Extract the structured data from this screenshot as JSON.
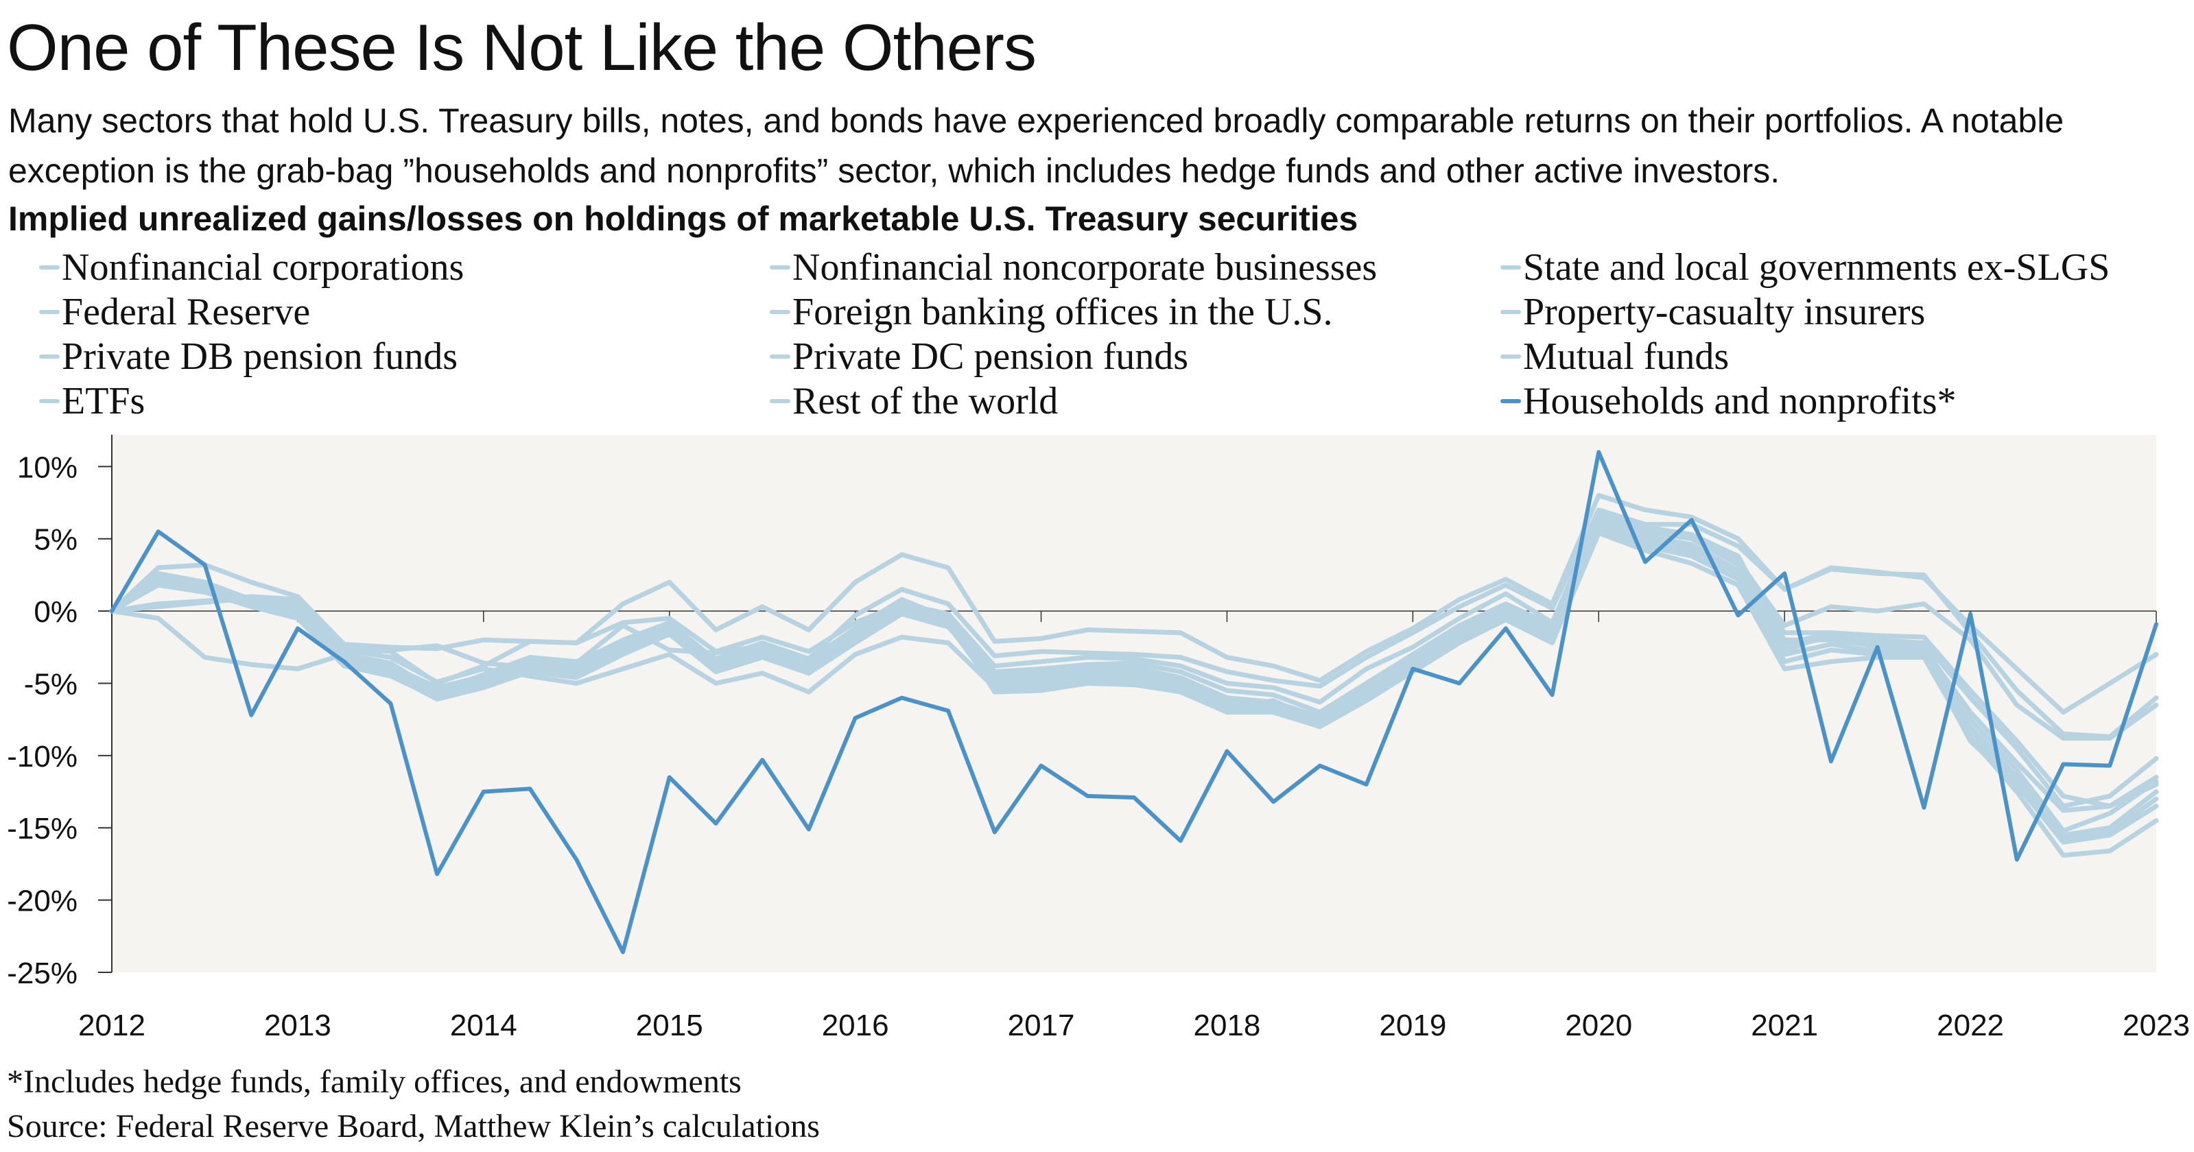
{
  "title": "One of These Is Not Like the Others",
  "subtitle": "Many sectors that hold U.S. Treasury bills, notes, and bonds have experienced broadly comparable returns on their portfolios. A notable exception is the grab-bag ”households and nonprofits” sector, which includes hedge funds and other active investors.",
  "footnote": "*Includes hedge funds, family offices, and endowments",
  "source": "Source: Federal Reserve Board, Matthew Klein’s calculations",
  "colors": {
    "others": "#b7d3e2",
    "highlight": "#4a92c8",
    "plot_background": "#f5f4f0",
    "zero_line": "#333333"
  },
  "chart_data": {
    "type": "line",
    "title": "Implied unrealized gains/losses on holdings of marketable U.S. Treasury securities",
    "xlabel": "",
    "ylabel": "",
    "xlim": [
      2012,
      2023
    ],
    "ylim": [
      -25,
      12.2
    ],
    "x_ticks": [
      "2012",
      "2013",
      "2014",
      "2015",
      "2016",
      "2017",
      "2018",
      "2019",
      "2020",
      "2021",
      "2022",
      "2023"
    ],
    "y_ticks": [
      10,
      5,
      0,
      -5,
      -10,
      -15,
      -20,
      -25
    ],
    "y_tick_labels": [
      "10%",
      "5%",
      "0%",
      "-5%",
      "-10%",
      "-15%",
      "-20%",
      "-25%"
    ],
    "grid": false,
    "legend_position": "top",
    "x": [
      2012,
      2012.25,
      2012.5,
      2012.75,
      2013,
      2013.25,
      2013.5,
      2013.75,
      2014,
      2014.25,
      2014.5,
      2014.75,
      2015,
      2015.25,
      2015.5,
      2015.75,
      2016,
      2016.25,
      2016.5,
      2016.75,
      2017,
      2017.25,
      2017.5,
      2017.75,
      2018,
      2018.25,
      2018.5,
      2018.75,
      2019,
      2019.25,
      2019.5,
      2019.75,
      2020,
      2020.25,
      2020.5,
      2020.75,
      2021,
      2021.25,
      2021.5,
      2021.75,
      2022,
      2022.25,
      2022.5,
      2022.75,
      2023
    ],
    "series": [
      {
        "name": "Nonfinancial corporations",
        "highlight": false,
        "values": [
          0,
          2.5,
          1.7,
          0.6,
          0,
          -3.2,
          -3.8,
          -5.3,
          -4.5,
          -3.3,
          -3.6,
          -2,
          -0.8,
          -3.4,
          -2.3,
          -3.4,
          -1.2,
          0.8,
          -0.5,
          -4.2,
          -4,
          -3.7,
          -3.6,
          -4.2,
          -5.5,
          -5.8,
          -7,
          -5,
          -3,
          -1,
          0.5,
          -1,
          6.8,
          5.7,
          5,
          3.2,
          -1.5,
          -1.5,
          -2,
          -2.2,
          -6,
          -9.5,
          -13.5,
          -12.8,
          -10.2
        ]
      },
      {
        "name": "Nonfinancial noncorporate businesses",
        "highlight": false,
        "values": [
          0,
          3,
          3.2,
          2,
          1,
          -2.3,
          -2.5,
          -2.6,
          -2,
          -2.1,
          -2.2,
          0.5,
          2,
          -1.3,
          0.3,
          -1.3,
          2,
          3.9,
          3,
          -2.1,
          -1.9,
          -1.3,
          -1.4,
          -1.5,
          -3.2,
          -3.8,
          -4.8,
          -2.8,
          -1.2,
          0.8,
          2.2,
          0.5,
          8,
          7,
          6.5,
          5,
          1.5,
          3,
          2.7,
          2.3,
          -1,
          -4,
          -7,
          -5,
          -3
        ]
      },
      {
        "name": "State and local governments ex-SLGS",
        "highlight": false,
        "values": [
          0,
          -0.5,
          -3.2,
          -3.7,
          -4,
          -3,
          -2.7,
          -2.4,
          -3.6,
          -3.9,
          -3.6,
          -1,
          -2.7,
          -2.9,
          -2.4,
          -3.3,
          -0.3,
          1.5,
          0.5,
          -3.1,
          -2.8,
          -2.9,
          -3,
          -3.2,
          -4.2,
          -4.8,
          -5.2,
          -3.2,
          -1.5,
          0.3,
          1.8,
          0.2,
          7,
          6,
          6,
          4.5,
          1.5,
          2.9,
          2.6,
          2.5,
          -1.5,
          -5.5,
          -8.5,
          -8.7,
          -6
        ]
      },
      {
        "name": "Federal Reserve",
        "highlight": false,
        "values": [
          0,
          0.5,
          0.7,
          1,
          0.8,
          -2.5,
          -2.8,
          -5,
          -3.8,
          -2.1,
          -2.2,
          -0.8,
          -0.5,
          -2.8,
          -1.8,
          -2.8,
          -0.8,
          0.5,
          -0.2,
          -3.8,
          -3.5,
          -3.2,
          -3.3,
          -3.8,
          -5,
          -5.3,
          -6.3,
          -4,
          -2.5,
          -0.5,
          1.2,
          -0.8,
          6.5,
          5.5,
          5,
          3.5,
          -1,
          0.3,
          0,
          0.5,
          -2,
          -6.5,
          -8.8,
          -8.8,
          -6.5
        ]
      },
      {
        "name": "Foreign banking offices in the U.S.",
        "highlight": false,
        "values": [
          0,
          2.2,
          1.6,
          0.5,
          -0.3,
          -3.5,
          -4.2,
          -5.8,
          -4.8,
          -3.6,
          -4,
          -2.4,
          -1,
          -3.8,
          -2.7,
          -3.7,
          -1.6,
          0.3,
          -0.8,
          -4.8,
          -4.5,
          -4,
          -4,
          -4.8,
          -6.2,
          -6.5,
          -7.5,
          -5.5,
          -3.5,
          -1.5,
          0,
          -1.5,
          6.2,
          5.2,
          4.6,
          2.8,
          -2,
          -2,
          -2.4,
          -2.6,
          -7,
          -10.5,
          -13.8,
          -13.5,
          -11.5
        ]
      },
      {
        "name": "Property-casualty insurers",
        "highlight": false,
        "values": [
          0,
          1.8,
          1.3,
          0.3,
          -0.5,
          -3.8,
          -4.5,
          -6,
          -5.2,
          -4,
          -4.3,
          -2.8,
          -1.3,
          -4,
          -3,
          -4,
          -2,
          0,
          -1,
          -5.2,
          -4.8,
          -4.5,
          -4.6,
          -5.3,
          -6.6,
          -6.8,
          -7.8,
          -5.8,
          -3.8,
          -1.8,
          -0.3,
          -1.8,
          5.8,
          4.8,
          4,
          2.4,
          -2.5,
          -1.8,
          -2.5,
          -2.7,
          -8,
          -11.5,
          -15.5,
          -15,
          -12.5
        ]
      },
      {
        "name": "Private DB pension funds",
        "highlight": false,
        "values": [
          0,
          2.4,
          1.8,
          0.7,
          0.2,
          -3.1,
          -4,
          -5.5,
          -4.6,
          -3.4,
          -3.7,
          -2.2,
          -0.9,
          -3.6,
          -2.5,
          -3.6,
          -1.4,
          0.6,
          -0.6,
          -5,
          -4.7,
          -4.2,
          -4.3,
          -5,
          -6.5,
          -6.7,
          -7.6,
          -5.6,
          -3.6,
          -1.6,
          -0.1,
          -1.6,
          6,
          5,
          4.3,
          2.6,
          -3,
          -2.3,
          -2.8,
          -2.9,
          -8.5,
          -11.8,
          -15.8,
          -15.3,
          -13
        ]
      },
      {
        "name": "Private DC pension funds",
        "highlight": false,
        "values": [
          0,
          2,
          1.5,
          0.4,
          -0.2,
          -3.3,
          -4.3,
          -5.7,
          -5,
          -3.8,
          -4.1,
          -2.6,
          -1.1,
          -3.9,
          -2.8,
          -3.9,
          -1.8,
          0.2,
          -0.9,
          -5.4,
          -5.2,
          -4.8,
          -4.8,
          -5.4,
          -6.8,
          -7,
          -8,
          -6,
          -4,
          -2,
          -0.5,
          -2,
          5.5,
          4.5,
          3.8,
          2.2,
          -3.5,
          -2.7,
          -3,
          -3,
          -9,
          -12,
          -16,
          -15.5,
          -13.5
        ]
      },
      {
        "name": "Mutual funds",
        "highlight": false,
        "values": [
          0,
          2.6,
          2,
          0.8,
          0.3,
          -3,
          -3.6,
          -5.6,
          -4.4,
          -3.2,
          -3.5,
          -2.1,
          -1.2,
          -3.3,
          -2.2,
          -3.3,
          -1.3,
          0.7,
          -0.4,
          -5.6,
          -5.5,
          -5,
          -5.1,
          -5.6,
          -7,
          -7,
          -8,
          -6.2,
          -4.2,
          -2.2,
          -0.6,
          -2.2,
          5.4,
          4.2,
          3.3,
          1.8,
          -4,
          -3.5,
          -3.2,
          -3.2,
          -8.8,
          -12.5,
          -16.9,
          -16.6,
          -14.5
        ]
      },
      {
        "name": "ETFs",
        "highlight": false,
        "values": [
          0,
          0.3,
          0.6,
          0.9,
          0.6,
          -2.7,
          -3.2,
          -4.9,
          -4,
          -4.5,
          -5,
          -4,
          -3,
          -5,
          -4.3,
          -5.6,
          -3,
          -1.8,
          -2.2,
          -5.3,
          -5,
          -4.5,
          -4.6,
          -5,
          -6.6,
          -6.2,
          -7.6,
          -5.4,
          -3.4,
          -1.4,
          0.3,
          -1.4,
          6.3,
          5.5,
          5.2,
          3.8,
          -2.8,
          -1.5,
          -1.7,
          -1.8,
          -5.5,
          -9,
          -12.8,
          -13.5,
          -12
        ]
      },
      {
        "name": "Rest of the world",
        "highlight": false,
        "values": [
          0,
          1.9,
          1.4,
          0.5,
          -0.4,
          -3.6,
          -4.4,
          -6.1,
          -5.3,
          -4.2,
          -4.6,
          -3,
          -1.6,
          -4.2,
          -3.2,
          -4.3,
          -2.2,
          -0.2,
          -1.1,
          -4.5,
          -4.3,
          -3.8,
          -3.9,
          -4.6,
          -6,
          -6.3,
          -7.3,
          -5.3,
          -3.3,
          -1.3,
          0.4,
          -1.3,
          6.5,
          5.8,
          5.3,
          3.8,
          -2.2,
          -1.6,
          -2.2,
          -2.4,
          -7.5,
          -11,
          -15.2,
          -14,
          -11.8
        ]
      },
      {
        "name": "Households and nonprofits*",
        "highlight": true,
        "values": [
          0,
          5.5,
          3.2,
          -7.2,
          -1.2,
          -3.5,
          -6.4,
          -18.2,
          -12.5,
          -12.3,
          -17.2,
          -23.6,
          -11.5,
          -14.7,
          -10.3,
          -15.1,
          -7.4,
          -6,
          -6.9,
          -15.3,
          -10.7,
          -12.8,
          -12.9,
          -15.9,
          -9.7,
          -13.2,
          -10.7,
          -12,
          -4,
          -5,
          -1.2,
          -5.8,
          11,
          3.4,
          6.3,
          -0.3,
          2.6,
          -10.4,
          -2.5,
          -13.6,
          -0.2,
          -17.2,
          -10.6,
          -10.7,
          -0.9
        ]
      }
    ]
  }
}
